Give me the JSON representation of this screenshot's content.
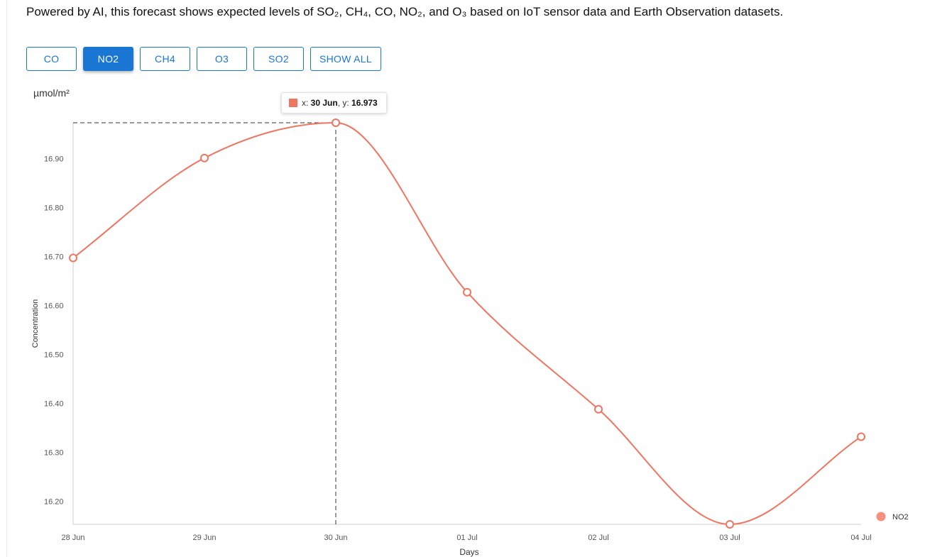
{
  "intro_text": "Powered by AI, this forecast shows expected levels of SO₂, CH₄, CO, NO₂, and O₃ based on IoT sensor data and Earth Observation datasets.",
  "buttons": [
    "CO",
    "NO2",
    "CH4",
    "O3",
    "SO2",
    "SHOW ALL"
  ],
  "active_button": "NO2",
  "colors": {
    "accent": "#1976d2",
    "series": "#f07560",
    "legend_dot": "#f4907f"
  },
  "tooltip": {
    "x_prefix": "x: ",
    "x_value": "30 Jun",
    "y_prefix": ", y: ",
    "y_value": "16.973"
  },
  "chart_data": {
    "type": "line",
    "unit": "µmol/m²",
    "xlabel": "Days",
    "ylabel": "Concentration",
    "categories": [
      "28 Jun",
      "29 Jun",
      "30 Jun",
      "01 Jul",
      "02 Jul",
      "03 Jul",
      "04 Jul"
    ],
    "series": [
      {
        "name": "NO2",
        "values": [
          16.697,
          16.901,
          16.973,
          16.627,
          16.388,
          16.153,
          16.332
        ]
      }
    ],
    "yticks": [
      16.2,
      16.3,
      16.4,
      16.5,
      16.6,
      16.7,
      16.8,
      16.9
    ],
    "ytick_labels": [
      "16.20",
      "16.30",
      "16.40",
      "16.50",
      "16.60",
      "16.70",
      "16.80",
      "16.90"
    ],
    "ylim": [
      16.153,
      16.973
    ],
    "highlighted_category": "30 Jun",
    "legend_position": "bottom-right",
    "grid": false
  }
}
